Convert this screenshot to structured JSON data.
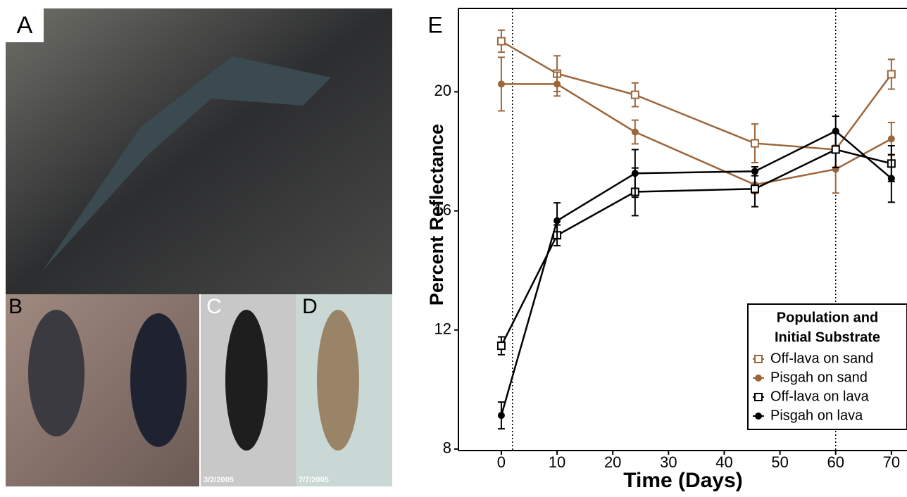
{
  "panels": {
    "a": "A",
    "b": "B",
    "c": "C",
    "d": "D",
    "c_date": "3/2/2005",
    "d_date": "7/7/2005"
  },
  "chart_data": {
    "type": "line",
    "panel_label": "E",
    "x_label": "Time (Days)",
    "y_label": "Percent Reflectance",
    "x": [
      0,
      10,
      24,
      45.5,
      60,
      70
    ],
    "xlim": [
      -7.7,
      72.8
    ],
    "xticks": [
      0,
      10,
      20,
      30,
      40,
      50,
      60,
      70
    ],
    "ylim": [
      7.95,
      22.8
    ],
    "yticks": [
      8,
      12,
      16,
      20
    ],
    "reference_lines": [
      2,
      60
    ],
    "legend_title": [
      "Population and",
      "Initial Substrate"
    ],
    "legend_position": "lower right",
    "series": [
      {
        "name": "Off-lava on sand",
        "color": "#9b663c",
        "marker": "open-square",
        "values": [
          21.7,
          20.61,
          19.9,
          18.27,
          18.06,
          20.59
        ],
        "errors": [
          0.37,
          0.6,
          0.4,
          0.65,
          0.6,
          0.5
        ]
      },
      {
        "name": "Pisgah on sand",
        "color": "#9b663c",
        "marker": "filled-circle",
        "values": [
          20.26,
          20.26,
          18.65,
          16.88,
          17.4,
          18.42
        ],
        "errors": [
          0.9,
          0.4,
          0.4,
          0.3,
          0.8,
          0.55
        ]
      },
      {
        "name": "Off-lava on lava",
        "color": "#000000",
        "marker": "open-square",
        "values": [
          11.47,
          15.18,
          16.64,
          16.74,
          18.06,
          17.59
        ],
        "errors": [
          0.3,
          0.35,
          0.8,
          0.6,
          0.6,
          0.6
        ]
      },
      {
        "name": "Pisgah on lava",
        "color": "#000000",
        "marker": "filled-circle",
        "values": [
          9.13,
          15.67,
          17.26,
          17.33,
          18.68,
          17.09
        ],
        "errors": [
          0.45,
          0.6,
          0.8,
          0.15,
          0.5,
          0.8
        ]
      }
    ]
  }
}
